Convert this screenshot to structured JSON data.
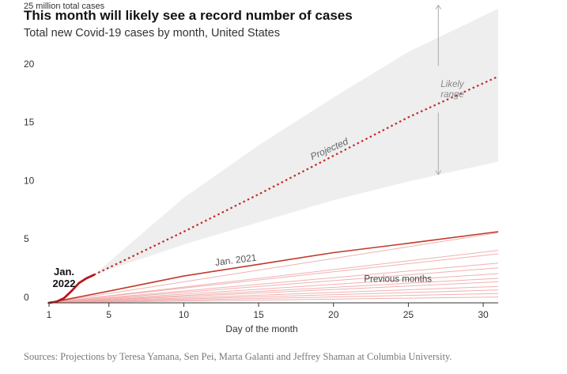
{
  "title": "This month will likely see a record number of cases",
  "subtitle": "Total new Covid-19 cases by month, United States",
  "source": "Sources: Projections by Teresa Yamana, Sen Pei, Marta Galanti and Jeffrey Shaman at Columbia University.",
  "chart_data": {
    "type": "line",
    "xlabel": "Day of the month",
    "ylabel": "25 million total cases",
    "xlim": [
      1,
      31
    ],
    "ylim": [
      0,
      25
    ],
    "x_ticks": [
      "1",
      "5",
      "10",
      "15",
      "20",
      "25",
      "30"
    ],
    "y_ticks": [
      "0",
      "5",
      "10",
      "15",
      "20"
    ],
    "annotations": {
      "current": "Jan. 2022",
      "projected": "Projected",
      "range": "Likely range",
      "jan2021": "Jan. 2021",
      "previous": "Previous months"
    },
    "series": [
      {
        "name": "Jan. 2022",
        "x": [
          1,
          1.5,
          2,
          2.5,
          3,
          3.5,
          4
        ],
        "values": [
          0,
          0.1,
          0.4,
          1.0,
          1.7,
          2.1,
          2.4
        ]
      },
      {
        "name": "Projected",
        "x": [
          4,
          10,
          15,
          20,
          25,
          31
        ],
        "values": [
          2.4,
          6.1,
          9.3,
          12.6,
          15.9,
          19.4
        ]
      },
      {
        "name": "Likely range upper",
        "x": [
          4,
          10,
          15,
          20,
          25,
          31
        ],
        "values": [
          2.4,
          9.0,
          13.5,
          17.6,
          21.5,
          25.2
        ]
      },
      {
        "name": "Likely range lower",
        "x": [
          4,
          10,
          15,
          20,
          25,
          31
        ],
        "values": [
          2.4,
          5.0,
          6.9,
          8.8,
          10.4,
          12.1
        ]
      },
      {
        "name": "Jan. 2021",
        "x": [
          1,
          5,
          10,
          15,
          20,
          25,
          31
        ],
        "values": [
          0,
          1.0,
          2.3,
          3.3,
          4.3,
          5.1,
          6.1
        ]
      },
      {
        "name": "Previous months",
        "x": [
          1,
          31
        ],
        "values": [
          0,
          6.0
        ]
      },
      {
        "name": "Previous months",
        "x": [
          1,
          31
        ],
        "values": [
          0,
          4.5
        ]
      },
      {
        "name": "Previous months",
        "x": [
          1,
          31
        ],
        "values": [
          0,
          4.2
        ]
      },
      {
        "name": "Previous months",
        "x": [
          1,
          31
        ],
        "values": [
          0,
          3.4
        ]
      },
      {
        "name": "Previous months",
        "x": [
          1,
          31
        ],
        "values": [
          0,
          3.0
        ]
      },
      {
        "name": "Previous months",
        "x": [
          1,
          31
        ],
        "values": [
          0,
          2.5
        ]
      },
      {
        "name": "Previous months",
        "x": [
          1,
          31
        ],
        "values": [
          0,
          2.1
        ]
      },
      {
        "name": "Previous months",
        "x": [
          1,
          31
        ],
        "values": [
          0,
          1.8
        ]
      },
      {
        "name": "Previous months",
        "x": [
          1,
          31
        ],
        "values": [
          0,
          1.4
        ]
      },
      {
        "name": "Previous months",
        "x": [
          1,
          31
        ],
        "values": [
          0,
          1.1
        ]
      },
      {
        "name": "Previous months",
        "x": [
          1,
          31
        ],
        "values": [
          0,
          0.8
        ]
      },
      {
        "name": "Previous months",
        "x": [
          1,
          31
        ],
        "values": [
          0,
          0.5
        ]
      }
    ],
    "colors": {
      "current": "#b8161b",
      "projected": "#c62828",
      "jan2021": "#c0392b",
      "previous": "#f0a8a8",
      "range": "#eeeeee",
      "range_arrow": "#aaaaaa",
      "axis": "#333333",
      "text": "#333333",
      "annotation": "#888888"
    }
  }
}
